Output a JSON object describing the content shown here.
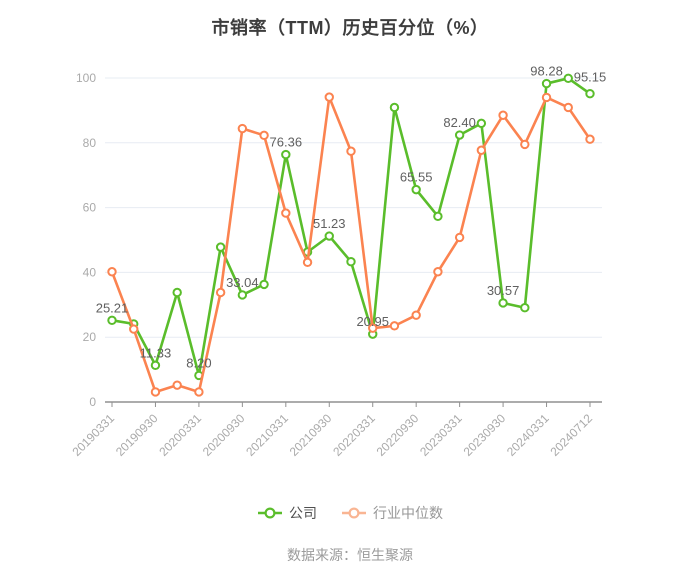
{
  "title": "市销率（TTM）历史百分位（%）",
  "source_note": "数据来源：恒生聚源",
  "colors": {
    "company": "#5ABD2B",
    "industry": "#FB8350",
    "industry_legend": "#F9B593",
    "grid": "#E7ECF3",
    "axis": "#909090",
    "axis_label": "#AAAAAA",
    "data_label": "#606060",
    "title_text": "#3D3D3D",
    "legend_company_text": "#4F4F4F",
    "legend_industry_text": "#979797",
    "source_text": "#9B9B9B"
  },
  "chart_data": {
    "type": "line",
    "title": "市销率（TTM）历史百分位（%）",
    "grid": true,
    "legend_position": "bottom",
    "n_points": 23,
    "x_axis": {
      "tick_labels": [
        "20190331",
        "20190930",
        "20200331",
        "20200930",
        "20210331",
        "20210930",
        "20220331",
        "20220930",
        "20230331",
        "20230930",
        "20240331",
        "20240712"
      ],
      "tick_point_indices": [
        0,
        2,
        4,
        6,
        8,
        10,
        12,
        14,
        16,
        18,
        20,
        22
      ],
      "label_rotate_deg": 45
    },
    "y_axis": {
      "ticks": [
        0,
        20,
        40,
        60,
        80,
        100
      ],
      "ylim": [
        0,
        100
      ]
    },
    "series": [
      {
        "name": "公司",
        "color": "#5ABD2B",
        "values": [
          25.21,
          24.1,
          11.33,
          33.8,
          8.2,
          47.8,
          33.04,
          36.3,
          76.36,
          46.3,
          51.23,
          43.3,
          20.95,
          90.9,
          65.55,
          57.3,
          82.4,
          86.0,
          30.57,
          29.1,
          98.28,
          99.9,
          95.15
        ],
        "point_labels": [
          "25.21",
          null,
          "11.33",
          null,
          "8.20",
          null,
          "33.04",
          null,
          "76.36",
          null,
          "51.23",
          null,
          "20.95",
          null,
          "65.55",
          null,
          "82.40",
          null,
          "30.57",
          null,
          "98.28",
          null,
          "95.15"
        ]
      },
      {
        "name": "行业中位数",
        "color": "#FB8350",
        "values": [
          40.2,
          22.5,
          3.1,
          5.2,
          3.1,
          33.8,
          84.4,
          82.3,
          58.3,
          43.1,
          94.1,
          77.4,
          22.8,
          23.5,
          26.8,
          40.2,
          50.8,
          77.7,
          88.5,
          79.5,
          94.0,
          90.9,
          81.1
        ],
        "point_labels": []
      }
    ]
  }
}
